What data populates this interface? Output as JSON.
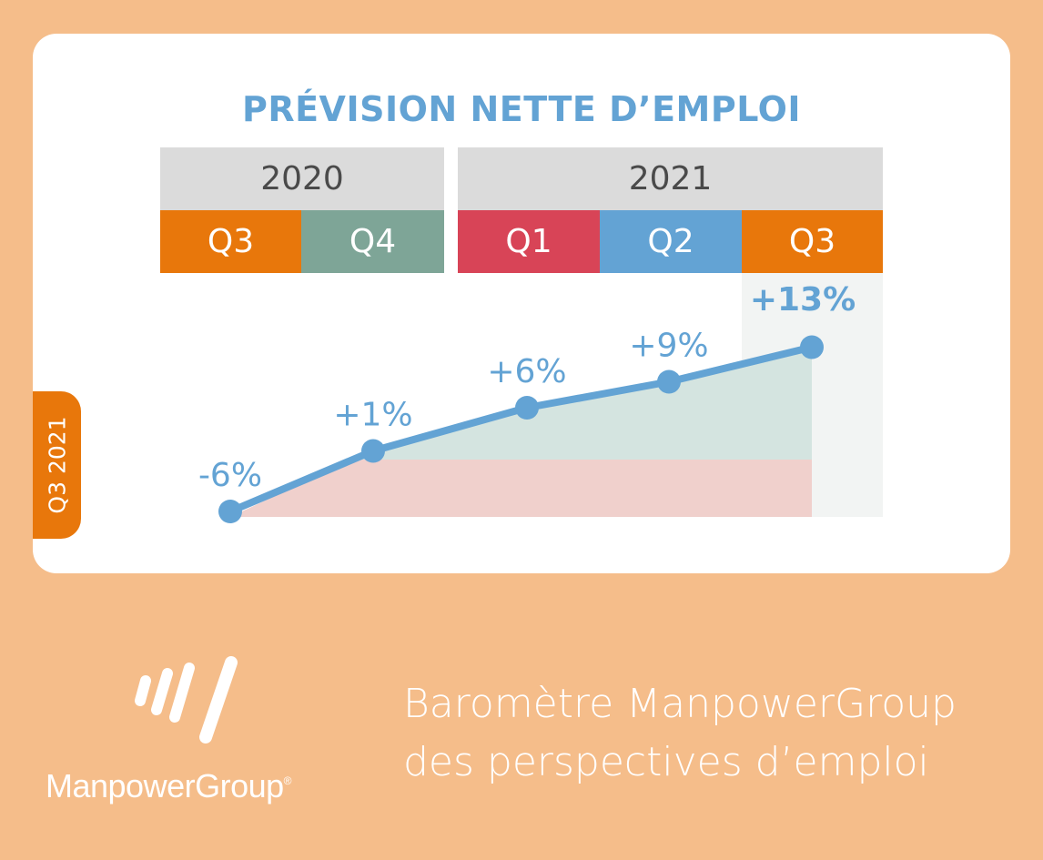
{
  "title": "PRÉVISION NETTE D’EMPLOI",
  "side_tab": "Q3 2021",
  "years": [
    "2020",
    "2021"
  ],
  "quarters": [
    {
      "label": "Q3",
      "color": "#e8770b"
    },
    {
      "label": "Q4",
      "color": "#7ea597"
    },
    {
      "label": "Q1",
      "color": "#d84457"
    },
    {
      "label": "Q2",
      "color": "#63a3d4"
    },
    {
      "label": "Q3",
      "color": "#e8770b"
    }
  ],
  "chart_data": {
    "type": "line",
    "x": [
      "Q3 2020",
      "Q4 2020",
      "Q1 2021",
      "Q2 2021",
      "Q3 2021"
    ],
    "values": [
      -6,
      1,
      6,
      9,
      13
    ],
    "labels": [
      "-6%",
      "+1%",
      "+6%",
      "+9%",
      "+13%"
    ],
    "line_color": "#63a3d4",
    "area_colors": {
      "negative": "#f0d0cc",
      "positive": "#d4e4e0",
      "highlight": "#f2f4f3"
    }
  },
  "footer": {
    "line1": "Baromètre ManpowerGroup",
    "line2": "des perspectives d’emploi"
  },
  "logo": {
    "name": "ManpowerGroup",
    "mark": "®"
  }
}
